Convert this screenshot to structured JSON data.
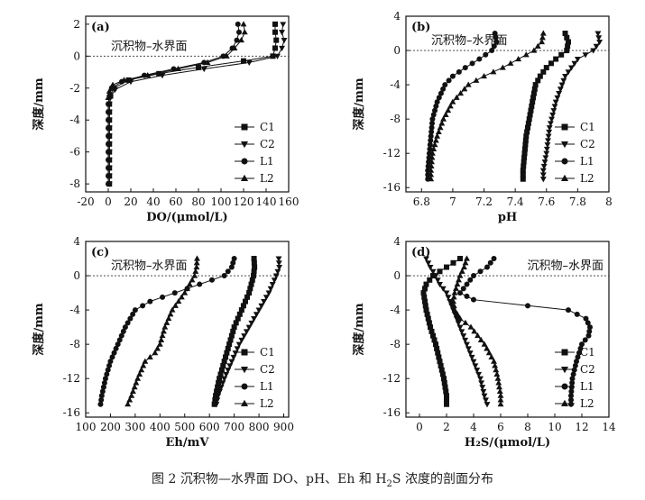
{
  "caption": {
    "prefix": "图 2 沉积物—水界面 DO、pH、Eh 和 H",
    "sub": "2",
    "suffix": "S 浓度的剖面分布"
  },
  "chart_data": [
    {
      "type": "line",
      "panel": "(a)",
      "xlabel": "DO/(μmol/L)",
      "ylabel": "深度/mm",
      "annotation": "沉积物–水界面",
      "xlim": [
        -20,
        160
      ],
      "ylim": [
        -8.5,
        2.5
      ],
      "xticks": [
        -20,
        0,
        20,
        40,
        60,
        80,
        100,
        120,
        140,
        160
      ],
      "yticks": [
        2,
        0,
        -2,
        -4,
        -6,
        -8
      ],
      "legend_position": "bottom-right",
      "series": [
        {
          "name": "C1",
          "marker": "square",
          "points": [
            [
              148,
              2
            ],
            [
              148,
              1.5
            ],
            [
              149,
              1
            ],
            [
              148,
              0.5
            ],
            [
              146,
              0
            ],
            [
              120,
              -0.3
            ],
            [
              80,
              -0.7
            ],
            [
              45,
              -1.1
            ],
            [
              18,
              -1.5
            ],
            [
              5,
              -2
            ],
            [
              2,
              -2.5
            ],
            [
              1,
              -3
            ],
            [
              1,
              -4
            ],
            [
              1,
              -5
            ],
            [
              1,
              -6
            ],
            [
              1,
              -7
            ],
            [
              1,
              -8
            ]
          ]
        },
        {
          "name": "C2",
          "marker": "triangle-down",
          "points": [
            [
              155,
              2
            ],
            [
              154,
              1.5
            ],
            [
              156,
              1
            ],
            [
              154,
              0.5
            ],
            [
              150,
              0
            ],
            [
              125,
              -0.4
            ],
            [
              85,
              -0.8
            ],
            [
              48,
              -1.2
            ],
            [
              20,
              -1.6
            ],
            [
              6,
              -2.1
            ],
            [
              2,
              -2.6
            ],
            [
              1,
              -3
            ],
            [
              1,
              -4
            ],
            [
              1,
              -5
            ],
            [
              1,
              -6
            ],
            [
              1,
              -7
            ],
            [
              1,
              -8
            ]
          ]
        },
        {
          "name": "L1",
          "marker": "circle",
          "points": [
            [
              115,
              2
            ],
            [
              116,
              1.5
            ],
            [
              114,
              1
            ],
            [
              110,
              0.5
            ],
            [
              102,
              0
            ],
            [
              85,
              -0.4
            ],
            [
              58,
              -0.8
            ],
            [
              32,
              -1.2
            ],
            [
              12,
              -1.6
            ],
            [
              3,
              -2
            ],
            [
              1,
              -2.5
            ],
            [
              0,
              -3
            ],
            [
              0,
              -4
            ],
            [
              0,
              -5
            ],
            [
              0,
              -6
            ],
            [
              0,
              -7
            ],
            [
              0,
              -8
            ]
          ]
        },
        {
          "name": "L2",
          "marker": "triangle",
          "points": [
            [
              120,
              2
            ],
            [
              121,
              1.5
            ],
            [
              118,
              1
            ],
            [
              112,
              0.5
            ],
            [
              105,
              0
            ],
            [
              88,
              -0.4
            ],
            [
              62,
              -0.8
            ],
            [
              35,
              -1.2
            ],
            [
              14,
              -1.5
            ],
            [
              4,
              -1.8
            ],
            [
              1,
              -2.2
            ],
            [
              0,
              -2.6
            ]
          ]
        }
      ]
    },
    {
      "type": "line",
      "panel": "(b)",
      "xlabel": "pH",
      "ylabel": "深度/mm",
      "annotation": "沉积物–水界面",
      "xlim": [
        6.7,
        8.0
      ],
      "ylim": [
        -16.5,
        4
      ],
      "xticks": [
        6.8,
        7.0,
        7.2,
        7.4,
        7.6,
        7.8,
        8.0
      ],
      "yticks": [
        4,
        0,
        -4,
        -8,
        -12,
        -16
      ],
      "legend_position": "bottom-right",
      "series": [
        {
          "name": "C1",
          "marker": "square",
          "points": [
            [
              7.72,
              2
            ],
            [
              7.74,
              1
            ],
            [
              7.73,
              0
            ],
            [
              7.66,
              -1
            ],
            [
              7.6,
              -2
            ],
            [
              7.56,
              -3
            ],
            [
              7.53,
              -4
            ],
            [
              7.51,
              -6
            ],
            [
              7.49,
              -8
            ],
            [
              7.47,
              -10
            ],
            [
              7.46,
              -12
            ],
            [
              7.45,
              -14
            ],
            [
              7.45,
              -15
            ]
          ]
        },
        {
          "name": "C2",
          "marker": "triangle-down",
          "points": [
            [
              7.93,
              2
            ],
            [
              7.94,
              1
            ],
            [
              7.9,
              0
            ],
            [
              7.8,
              -1
            ],
            [
              7.72,
              -3
            ],
            [
              7.66,
              -6
            ],
            [
              7.62,
              -9
            ],
            [
              7.6,
              -12
            ],
            [
              7.58,
              -14
            ],
            [
              7.58,
              -15
            ]
          ]
        },
        {
          "name": "L1",
          "marker": "circle",
          "points": [
            [
              7.27,
              2
            ],
            [
              7.28,
              1
            ],
            [
              7.25,
              0
            ],
            [
              7.17,
              -1
            ],
            [
              7.08,
              -2
            ],
            [
              7.0,
              -3
            ],
            [
              6.95,
              -4
            ],
            [
              6.9,
              -6
            ],
            [
              6.87,
              -8
            ],
            [
              6.86,
              -10
            ],
            [
              6.85,
              -12
            ],
            [
              6.84,
              -14
            ],
            [
              6.84,
              -15
            ]
          ]
        },
        {
          "name": "L2",
          "marker": "triangle",
          "points": [
            [
              7.58,
              2
            ],
            [
              7.57,
              1
            ],
            [
              7.52,
              0
            ],
            [
              7.42,
              -1
            ],
            [
              7.32,
              -2
            ],
            [
              7.2,
              -3
            ],
            [
              7.1,
              -4
            ],
            [
              7.0,
              -6
            ],
            [
              6.94,
              -8
            ],
            [
              6.9,
              -10
            ],
            [
              6.87,
              -12
            ],
            [
              6.86,
              -14
            ],
            [
              6.86,
              -15
            ]
          ]
        }
      ]
    },
    {
      "type": "line",
      "panel": "(c)",
      "xlabel": "Eh/mV",
      "ylabel": "深度/mm",
      "annotation": "沉积物–水界面",
      "xlim": [
        100,
        920
      ],
      "ylim": [
        -16.5,
        4
      ],
      "xticks": [
        100,
        200,
        300,
        400,
        500,
        600,
        700,
        800,
        900
      ],
      "yticks": [
        4,
        0,
        -4,
        -8,
        -12,
        -16
      ],
      "legend_position": "bottom-right",
      "series": [
        {
          "name": "C1",
          "marker": "square",
          "points": [
            [
              780,
              2
            ],
            [
              782,
              1
            ],
            [
              778,
              0
            ],
            [
              760,
              -2
            ],
            [
              730,
              -4
            ],
            [
              700,
              -6
            ],
            [
              680,
              -8
            ],
            [
              660,
              -10
            ],
            [
              640,
              -12
            ],
            [
              625,
              -14
            ],
            [
              620,
              -15
            ]
          ]
        },
        {
          "name": "C2",
          "marker": "triangle-down",
          "points": [
            [
              880,
              2
            ],
            [
              882,
              1
            ],
            [
              870,
              0
            ],
            [
              840,
              -2
            ],
            [
              800,
              -4
            ],
            [
              760,
              -6
            ],
            [
              720,
              -8
            ],
            [
              690,
              -10
            ],
            [
              660,
              -12
            ],
            [
              635,
              -14
            ],
            [
              628,
              -15
            ]
          ]
        },
        {
          "name": "L1",
          "marker": "circle",
          "points": [
            [
              700,
              2
            ],
            [
              690,
              1
            ],
            [
              660,
              0
            ],
            [
              560,
              -1
            ],
            [
              460,
              -2
            ],
            [
              360,
              -3
            ],
            [
              300,
              -4
            ],
            [
              260,
              -6
            ],
            [
              230,
              -8
            ],
            [
              200,
              -10
            ],
            [
              180,
              -12
            ],
            [
              165,
              -14
            ],
            [
              160,
              -15
            ]
          ]
        },
        {
          "name": "L2",
          "marker": "triangle",
          "points": [
            [
              550,
              2
            ],
            [
              548,
              1
            ],
            [
              540,
              0
            ],
            [
              500,
              -2
            ],
            [
              450,
              -4
            ],
            [
              420,
              -6
            ],
            [
              400,
              -8
            ],
            [
              380,
              -9
            ],
            [
              340,
              -10
            ],
            [
              310,
              -12
            ],
            [
              285,
              -14
            ],
            [
              270,
              -15
            ]
          ]
        }
      ]
    },
    {
      "type": "line",
      "panel": "(d)",
      "xlabel": "H₂S/(μmol/L)",
      "ylabel": "深度/mm",
      "annotation": "沉积物–水界面",
      "xlim": [
        -1,
        14
      ],
      "ylim": [
        -16.5,
        4
      ],
      "xticks": [
        0,
        2,
        4,
        6,
        8,
        10,
        12,
        14
      ],
      "yticks": [
        4,
        0,
        -4,
        -8,
        -12,
        -16
      ],
      "legend_position": "bottom-right",
      "series": [
        {
          "name": "C1",
          "marker": "square",
          "points": [
            [
              3,
              2
            ],
            [
              2,
              1
            ],
            [
              1,
              0
            ],
            [
              0.5,
              -1
            ],
            [
              0.3,
              -2
            ],
            [
              0.5,
              -4
            ],
            [
              0.8,
              -6
            ],
            [
              1.2,
              -8
            ],
            [
              1.5,
              -10
            ],
            [
              1.8,
              -12
            ],
            [
              2,
              -14
            ],
            [
              2,
              -15
            ]
          ]
        },
        {
          "name": "C2",
          "marker": "triangle-down",
          "points": [
            [
              0.5,
              2
            ],
            [
              0.8,
              1
            ],
            [
              1.2,
              0
            ],
            [
              1.5,
              -1
            ],
            [
              2,
              -2
            ],
            [
              2.5,
              -4
            ],
            [
              3,
              -6
            ],
            [
              3.5,
              -8
            ],
            [
              4,
              -10
            ],
            [
              4.5,
              -12
            ],
            [
              4.8,
              -14
            ],
            [
              5,
              -15
            ]
          ]
        },
        {
          "name": "L1",
          "marker": "circle",
          "points": [
            [
              5.5,
              2
            ],
            [
              5,
              1
            ],
            [
              4,
              0
            ],
            [
              3.5,
              -1
            ],
            [
              3,
              -2
            ],
            [
              4,
              -2.8
            ],
            [
              8,
              -3.5
            ],
            [
              11,
              -4
            ],
            [
              12.3,
              -5
            ],
            [
              12.6,
              -6
            ],
            [
              12.5,
              -7
            ],
            [
              12,
              -8
            ],
            [
              11.6,
              -10
            ],
            [
              11.3,
              -12
            ],
            [
              11.2,
              -14
            ],
            [
              11.2,
              -15
            ]
          ]
        },
        {
          "name": "L2",
          "marker": "triangle",
          "points": [
            [
              3.5,
              2
            ],
            [
              3.3,
              1
            ],
            [
              3,
              0
            ],
            [
              2.8,
              -1
            ],
            [
              2.6,
              -2
            ],
            [
              2.5,
              -3
            ],
            [
              2.6,
              -4
            ],
            [
              3,
              -5
            ],
            [
              3.8,
              -6
            ],
            [
              4.8,
              -8
            ],
            [
              5.5,
              -10
            ],
            [
              5.8,
              -12
            ],
            [
              6,
              -14
            ],
            [
              6,
              -15
            ]
          ]
        }
      ]
    }
  ]
}
